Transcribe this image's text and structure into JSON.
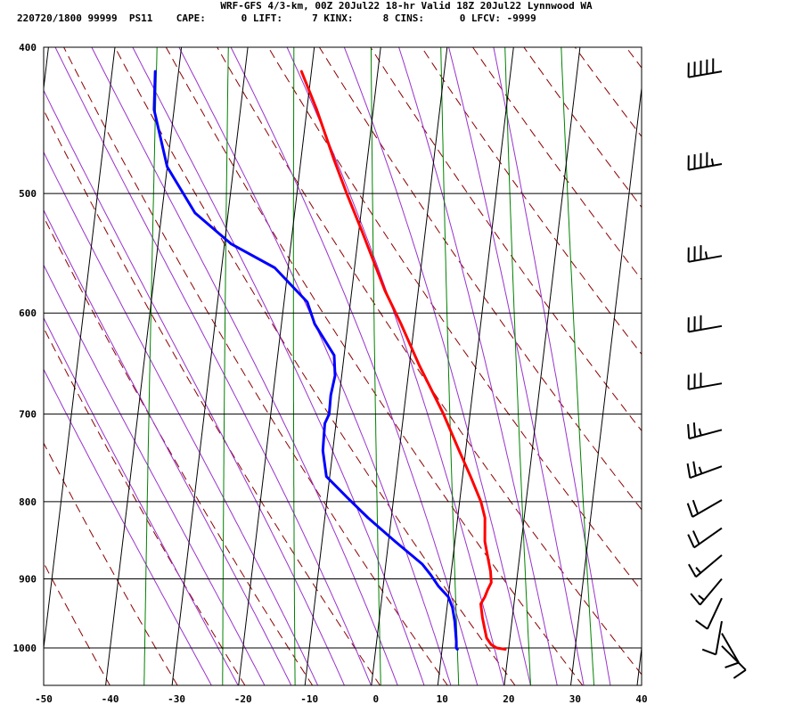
{
  "header": {
    "line1": "WRF-GFS 4/3-km, 00Z 20Jul22 18-hr Valid 18Z 20Jul22 Lynnwood WA",
    "line2": "220720/1800 99999  PS11    CAPE:      0 LIFT:     7 KINX:     8 CINS:      0 LFCV: -9999"
  },
  "chart_data": {
    "type": "line",
    "title": "WRF-GFS 4/3-km, 00Z 20Jul22 18-hr Valid 18Z 20Jul22 Lynnwood WA",
    "xlabel": "",
    "ylabel": "",
    "xlim": [
      -50,
      40
    ],
    "ylim": [
      1030,
      400
    ],
    "y_scale": "log-pressure",
    "grid": true,
    "x_ticks": [
      -50,
      -40,
      -30,
      -20,
      -10,
      0,
      10,
      20,
      30,
      40
    ],
    "y_ticks": [
      400,
      500,
      600,
      700,
      800,
      900,
      1000
    ],
    "colors": {
      "temperature": "#ff0000",
      "dewpoint": "#0000ff",
      "dry_adiabat": "#8b0000",
      "moist_adiabat": "#9932cc",
      "mixing_ratio": "#008000",
      "grid": "#000000",
      "barb": "#000000"
    },
    "series": [
      {
        "key": "temperature",
        "pressure": [
          1002,
          1000,
          995,
          985,
          970,
          955,
          935,
          925,
          915,
          905,
          890,
          870,
          850,
          820,
          800,
          770,
          740,
          700,
          650,
          610,
          580,
          530,
          500,
          475,
          440,
          415
        ],
        "values": [
          19.5,
          18.2,
          17.3,
          16.5,
          16.0,
          15.5,
          15.0,
          15.5,
          15.8,
          16.2,
          15.9,
          15.2,
          14.5,
          14.1,
          13.2,
          11.2,
          9.0,
          6.0,
          1.5,
          -2.0,
          -5.0,
          -9.5,
          -12.5,
          -15.0,
          -18.5,
          -21.5
        ]
      },
      {
        "key": "dewpoint",
        "pressure": [
          1002,
          1000,
          990,
          960,
          940,
          925,
          910,
          895,
          880,
          850,
          820,
          795,
          770,
          740,
          710,
          700,
          680,
          660,
          640,
          610,
          590,
          560,
          540,
          515,
          480,
          440,
          415
        ],
        "values": [
          12.3,
          12.1,
          12.0,
          11.4,
          10.8,
          10.0,
          8.3,
          7.0,
          5.5,
          1.0,
          -3.5,
          -7.0,
          -10.5,
          -11.5,
          -11.7,
          -11.2,
          -11.3,
          -11.0,
          -11.5,
          -15.0,
          -16.5,
          -22.0,
          -29.0,
          -35.0,
          -40.0,
          -43.0,
          -43.5
        ]
      }
    ],
    "wind_barbs": [
      {
        "pressure": 415,
        "dir": 260,
        "kt": 50
      },
      {
        "pressure": 478,
        "dir": 260,
        "kt": 45
      },
      {
        "pressure": 550,
        "dir": 260,
        "kt": 35
      },
      {
        "pressure": 612,
        "dir": 260,
        "kt": 30
      },
      {
        "pressure": 668,
        "dir": 260,
        "kt": 30
      },
      {
        "pressure": 717,
        "dir": 255,
        "kt": 25
      },
      {
        "pressure": 758,
        "dir": 250,
        "kt": 25
      },
      {
        "pressure": 798,
        "dir": 240,
        "kt": 20
      },
      {
        "pressure": 833,
        "dir": 235,
        "kt": 20
      },
      {
        "pressure": 868,
        "dir": 230,
        "kt": 15
      },
      {
        "pressure": 900,
        "dir": 220,
        "kt": 15
      },
      {
        "pressure": 927,
        "dir": 205,
        "kt": 10
      },
      {
        "pressure": 960,
        "dir": 190,
        "kt": 10
      },
      {
        "pressure": 978,
        "dir": 150,
        "kt": 10
      },
      {
        "pressure": 997,
        "dir": 135,
        "kt": 10
      }
    ]
  }
}
